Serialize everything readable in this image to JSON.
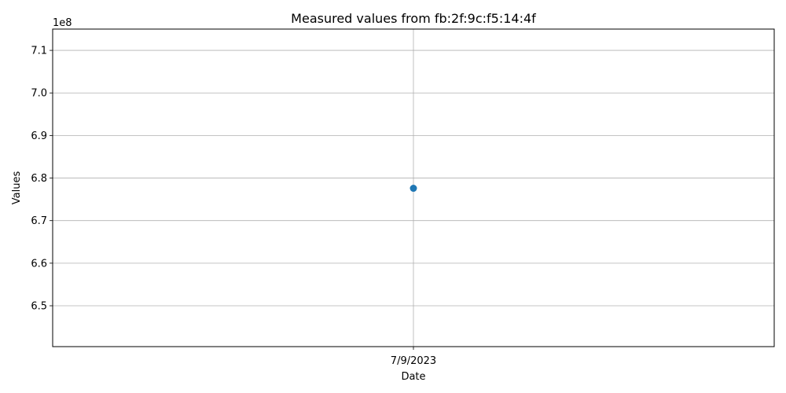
{
  "chart_data": {
    "type": "scatter",
    "title": "Measured values from fb:2f:9c:f5:14:4f",
    "xlabel": "Date",
    "ylabel": "Values",
    "x_categories": [
      "7/9/2023"
    ],
    "series": [
      {
        "x": [
          "7/9/2023"
        ],
        "values": [
          677600000
        ],
        "color": "#1f77b4"
      }
    ],
    "ylim": [
      640400000,
      715000000
    ],
    "y_ticks": [
      650000000,
      660000000,
      670000000,
      680000000,
      690000000,
      700000000,
      710000000
    ],
    "y_tick_labels": [
      "6.5",
      "6.6",
      "6.7",
      "6.8",
      "6.9",
      "7.0",
      "7.1"
    ],
    "y_offset_label": "1e8",
    "grid": true,
    "legend": "none"
  }
}
